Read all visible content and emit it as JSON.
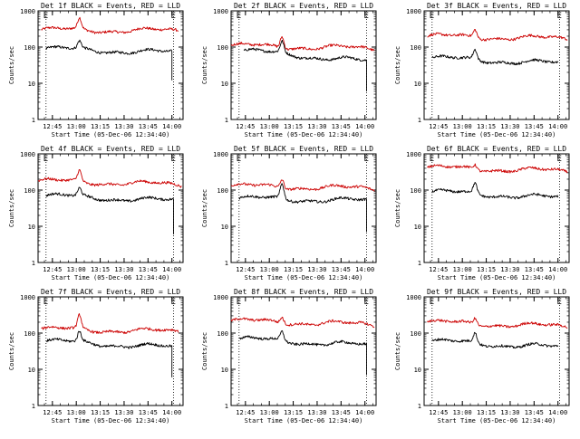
{
  "chart_data": [
    {
      "type": "line",
      "title": "Det 1f BLACK = Events, RED = LLD",
      "xlabel": "Start Time (05-Dec-06 12:34:40)",
      "ylabel": "Counts/sec",
      "yscale": "log",
      "ylim": [
        1,
        1000
      ],
      "xlim": [
        "12:36",
        "14:07"
      ],
      "x_ticks": [
        "12:45",
        "13:00",
        "13:15",
        "13:30",
        "13:45",
        "14:00"
      ],
      "y_ticks": [
        "1",
        "10",
        "100",
        "1000"
      ],
      "markers": [
        {
          "label": "E",
          "time": "12:41"
        },
        {
          "label": "E",
          "time": "14:01"
        }
      ],
      "grid": false,
      "series": [
        {
          "color": "#cc0000",
          "start": "12:38",
          "end": "14:04",
          "base": 300,
          "end_level": 280,
          "peak": 580,
          "peak_time": "13:02",
          "drop": null
        },
        {
          "color": "#000000",
          "start": "12:41",
          "end": "14:00",
          "base": 90,
          "end_level": 70,
          "peak": 140,
          "peak_time": "13:02",
          "drop": 12
        }
      ]
    },
    {
      "type": "line",
      "title": "Det 2f BLACK = Events, RED = LLD",
      "xlabel": "Start Time (05-Dec-06 12:34:40)",
      "ylabel": "Counts/sec",
      "yscale": "log",
      "ylim": [
        1,
        1000
      ],
      "xlim": [
        "12:36",
        "14:07"
      ],
      "x_ticks": [
        "12:45",
        "13:00",
        "13:15",
        "13:30",
        "13:45",
        "14:00"
      ],
      "y_ticks": [
        "1",
        "10",
        "100",
        "1000"
      ],
      "markers": [
        {
          "label": "E",
          "time": "12:41"
        },
        {
          "label": "E",
          "time": "14:01"
        }
      ],
      "grid": false,
      "series": [
        {
          "color": "#cc0000",
          "start": "12:36",
          "end": "14:06",
          "base": 110,
          "end_level": 90,
          "peak": 230,
          "peak_time": "13:08",
          "drop": null
        },
        {
          "color": "#000000",
          "start": "12:44",
          "end": "14:01",
          "base": 80,
          "end_level": 40,
          "peak": 160,
          "peak_time": "13:08",
          "drop": 6
        }
      ]
    },
    {
      "type": "line",
      "title": "Det 3f BLACK = Events, RED = LLD",
      "xlabel": "Start Time (05-Dec-06 12:34:40)",
      "ylabel": "Counts/sec",
      "yscale": "log",
      "ylim": [
        1,
        1000
      ],
      "xlim": [
        "12:36",
        "14:07"
      ],
      "x_ticks": [
        "12:45",
        "13:00",
        "13:15",
        "13:30",
        "13:45",
        "14:00"
      ],
      "y_ticks": [
        "1",
        "10",
        "100",
        "1000"
      ],
      "markers": [
        {
          "label": "E",
          "time": "12:41"
        },
        {
          "label": "E",
          "time": "14:01"
        }
      ],
      "grid": false,
      "series": [
        {
          "color": "#cc0000",
          "start": "12:38",
          "end": "14:06",
          "base": 200,
          "end_level": 170,
          "peak": 330,
          "peak_time": "13:08",
          "drop": null
        },
        {
          "color": "#000000",
          "start": "12:41",
          "end": "14:00",
          "base": 50,
          "end_level": 35,
          "peak": 90,
          "peak_time": "13:08",
          "drop": null
        }
      ]
    },
    {
      "type": "line",
      "title": "Det 4f BLACK = Events, RED = LLD",
      "xlabel": "Start Time (05-Dec-06 12:34:40)",
      "ylabel": "Counts/sec",
      "yscale": "log",
      "ylim": [
        1,
        1000
      ],
      "xlim": [
        "12:36",
        "14:07"
      ],
      "x_ticks": [
        "12:45",
        "13:00",
        "13:15",
        "13:30",
        "13:45",
        "14:00"
      ],
      "y_ticks": [
        "1",
        "10",
        "100",
        "1000"
      ],
      "markers": [
        {
          "label": "E",
          "time": "12:41"
        },
        {
          "label": "E",
          "time": "14:01"
        }
      ],
      "grid": false,
      "series": [
        {
          "color": "#cc0000",
          "start": "12:36",
          "end": "14:06",
          "base": 180,
          "end_level": 140,
          "peak": 350,
          "peak_time": "13:02",
          "drop": null
        },
        {
          "color": "#000000",
          "start": "12:41",
          "end": "14:01",
          "base": 70,
          "end_level": 50,
          "peak": 110,
          "peak_time": "13:02",
          "drop": 6
        }
      ]
    },
    {
      "type": "line",
      "title": "Det 5f BLACK = Events, RED = LLD",
      "xlabel": "Start Time (05-Dec-06 12:34:40)",
      "ylabel": "Counts/sec",
      "yscale": "log",
      "ylim": [
        1,
        1000
      ],
      "xlim": [
        "12:36",
        "14:07"
      ],
      "x_ticks": [
        "12:45",
        "13:00",
        "13:15",
        "13:30",
        "13:45",
        "14:00"
      ],
      "y_ticks": [
        "1",
        "10",
        "100",
        "1000"
      ],
      "markers": [
        {
          "label": "E",
          "time": "12:41"
        },
        {
          "label": "E",
          "time": "14:01"
        }
      ],
      "grid": false,
      "series": [
        {
          "color": "#cc0000",
          "start": "12:36",
          "end": "14:06",
          "base": 130,
          "end_level": 110,
          "peak": 230,
          "peak_time": "13:08",
          "drop": null
        },
        {
          "color": "#000000",
          "start": "12:41",
          "end": "14:01",
          "base": 60,
          "end_level": 50,
          "peak": 150,
          "peak_time": "13:08",
          "drop": 7
        }
      ]
    },
    {
      "type": "line",
      "title": "Det 6f BLACK = Events, RED = LLD",
      "xlabel": "Start Time (05-Dec-06 12:34:40)",
      "ylabel": "Counts/sec",
      "yscale": "log",
      "ylim": [
        1,
        1000
      ],
      "xlim": [
        "12:36",
        "14:07"
      ],
      "x_ticks": [
        "12:45",
        "13:00",
        "13:15",
        "13:30",
        "13:45",
        "14:00"
      ],
      "y_ticks": [
        "1",
        "10",
        "100",
        "1000"
      ],
      "markers": [
        {
          "label": "E",
          "time": "12:41"
        },
        {
          "label": "E",
          "time": "14:01"
        }
      ],
      "grid": false,
      "series": [
        {
          "color": "#cc0000",
          "start": "12:38",
          "end": "14:06",
          "base": 420,
          "end_level": 330,
          "peak": 560,
          "peak_time": "13:08",
          "drop": null
        },
        {
          "color": "#000000",
          "start": "12:41",
          "end": "14:00",
          "base": 90,
          "end_level": 60,
          "peak": 170,
          "peak_time": "13:08",
          "drop": null
        }
      ]
    },
    {
      "type": "line",
      "title": "Det 7f BLACK = Events, RED = LLD",
      "xlabel": "Start Time (05-Dec-06 12:34:40)",
      "ylabel": "Counts/sec",
      "yscale": "log",
      "ylim": [
        1,
        1000
      ],
      "xlim": [
        "12:36",
        "14:07"
      ],
      "x_ticks": [
        "12:45",
        "13:00",
        "13:15",
        "13:30",
        "13:45",
        "14:00"
      ],
      "y_ticks": [
        "1",
        "10",
        "100",
        "1000"
      ],
      "markers": [
        {
          "label": "E",
          "time": "12:41"
        },
        {
          "label": "E",
          "time": "14:01"
        }
      ],
      "grid": false,
      "series": [
        {
          "color": "#cc0000",
          "start": "12:38",
          "end": "14:04",
          "base": 130,
          "end_level": 110,
          "peak": 300,
          "peak_time": "13:02",
          "drop": null
        },
        {
          "color": "#000000",
          "start": "12:41",
          "end": "14:00",
          "base": 60,
          "end_level": 40,
          "peak": 110,
          "peak_time": "13:02",
          "drop": 6
        }
      ]
    },
    {
      "type": "line",
      "title": "Det 8f BLACK = Events, RED = LLD",
      "xlabel": "Start Time (05-Dec-06 12:34:40)",
      "ylabel": "Counts/sec",
      "yscale": "log",
      "ylim": [
        1,
        1000
      ],
      "xlim": [
        "12:36",
        "14:07"
      ],
      "x_ticks": [
        "12:45",
        "13:00",
        "13:15",
        "13:30",
        "13:45",
        "14:00"
      ],
      "y_ticks": [
        "1",
        "10",
        "100",
        "1000"
      ],
      "markers": [
        {
          "label": "E",
          "time": "12:41"
        },
        {
          "label": "E",
          "time": "14:01"
        }
      ],
      "grid": false,
      "series": [
        {
          "color": "#cc0000",
          "start": "12:36",
          "end": "14:06",
          "base": 220,
          "end_level": 170,
          "peak": 330,
          "peak_time": "13:08",
          "drop": null
        },
        {
          "color": "#000000",
          "start": "12:41",
          "end": "14:01",
          "base": 70,
          "end_level": 45,
          "peak": 120,
          "peak_time": "13:08",
          "drop": 7
        }
      ]
    },
    {
      "type": "line",
      "title": "Det 9f BLACK = Events, RED = LLD",
      "xlabel": "Start Time (05-Dec-06 12:34:40)",
      "ylabel": "Counts/sec",
      "yscale": "log",
      "ylim": [
        1,
        1000
      ],
      "xlim": [
        "12:36",
        "14:07"
      ],
      "x_ticks": [
        "12:45",
        "13:00",
        "13:15",
        "13:30",
        "13:45",
        "14:00"
      ],
      "y_ticks": [
        "1",
        "10",
        "100",
        "1000"
      ],
      "markers": [
        {
          "label": "E",
          "time": "12:41"
        },
        {
          "label": "E",
          "time": "14:01"
        }
      ],
      "grid": false,
      "series": [
        {
          "color": "#cc0000",
          "start": "12:38",
          "end": "14:06",
          "base": 200,
          "end_level": 150,
          "peak": 290,
          "peak_time": "13:08",
          "drop": null
        },
        {
          "color": "#000000",
          "start": "12:41",
          "end": "14:00",
          "base": 60,
          "end_level": 40,
          "peak": 110,
          "peak_time": "13:08",
          "drop": null
        }
      ]
    }
  ]
}
